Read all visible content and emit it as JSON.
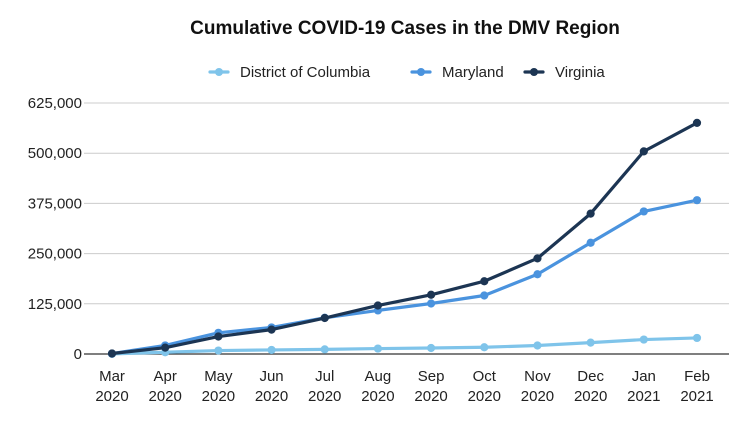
{
  "chart_data": {
    "type": "line",
    "title": "Cumulative COVID-19 Cases in the DMV Region",
    "xlabel": "",
    "ylabel": "",
    "ylim": [
      0,
      625000
    ],
    "yticks": [
      0,
      125000,
      250000,
      375000,
      500000,
      625000
    ],
    "ytick_labels": [
      "0",
      "125,000",
      "250,000",
      "375,000",
      "500,000",
      "625,000"
    ],
    "grid": true,
    "legend_position": "top",
    "categories": [
      "Mar 2020",
      "Apr 2020",
      "May 2020",
      "Jun 2020",
      "Jul 2020",
      "Aug 2020",
      "Sep 2020",
      "Oct 2020",
      "Nov 2020",
      "Dec 2020",
      "Jan 2021",
      "Feb 2021"
    ],
    "series": [
      {
        "name": "District of Columbia",
        "color": "#7fc4ea",
        "values": [
          400,
          4300,
          8500,
          10100,
          11500,
          13500,
          15000,
          16800,
          21200,
          28400,
          36000,
          40000
        ]
      },
      {
        "name": "Maryland",
        "color": "#4a93de",
        "values": [
          1000,
          21300,
          52700,
          66200,
          90200,
          108500,
          125800,
          145700,
          198500,
          277000,
          355000,
          383000
        ]
      },
      {
        "name": "Virginia",
        "color": "#1c3553",
        "values": [
          1200,
          15800,
          43500,
          60700,
          89600,
          120800,
          147500,
          181200,
          238200,
          349600,
          504500,
          575500
        ]
      }
    ]
  }
}
